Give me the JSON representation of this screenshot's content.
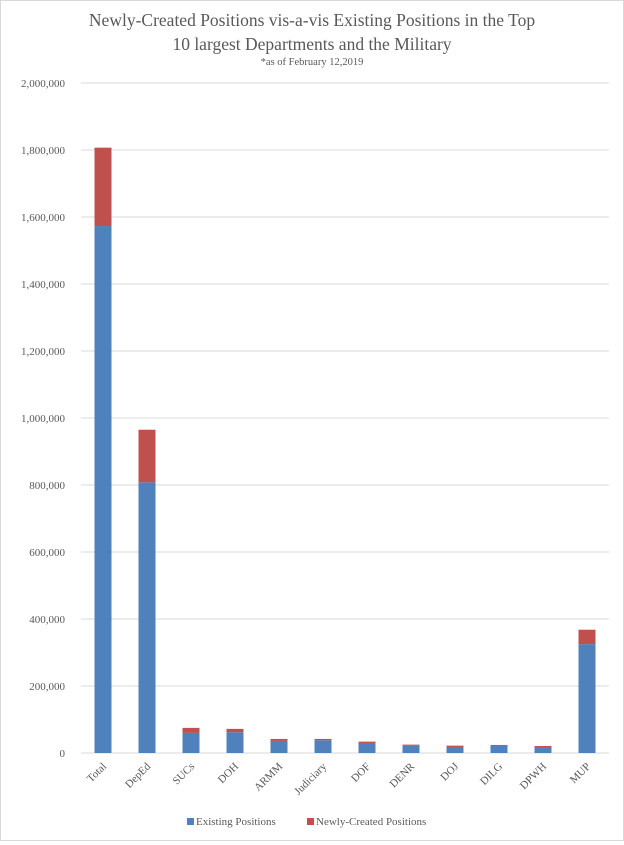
{
  "chart_data": {
    "type": "bar",
    "stacked": true,
    "title_lines": [
      "Newly-Created Positions vis-a-vis Existing Positions in the Top",
      "10 largest Departments and the Military"
    ],
    "subtitle": "*as of February 12,2019",
    "categories": [
      "Total",
      "DepEd",
      "SUCs",
      "DOH",
      "ARMM",
      "Judiciary",
      "DOF",
      "DENR",
      "DOJ",
      "DILG",
      "DPWH",
      "MUP"
    ],
    "series": [
      {
        "name": "Existing Positions",
        "color": "#4f81bd",
        "values": [
          1573000,
          808000,
          60000,
          62000,
          36000,
          38000,
          30000,
          22000,
          18000,
          21000,
          18000,
          325000
        ]
      },
      {
        "name": "Newly-Created Positions",
        "color": "#c0504d",
        "values": [
          234000,
          157000,
          15000,
          10000,
          6000,
          4000,
          4000,
          3000,
          4000,
          3000,
          3000,
          43000
        ]
      }
    ],
    "ylim": [
      0,
      2000000
    ],
    "yticks": [
      0,
      200000,
      400000,
      600000,
      800000,
      1000000,
      1200000,
      1400000,
      1600000,
      1800000,
      2000000
    ],
    "ytick_labels": [
      "0",
      "200,000",
      "400,000",
      "600,000",
      "800,000",
      "1,000,000",
      "1,200,000",
      "1,400,000",
      "1,600,000",
      "1,800,000",
      "2,000,000"
    ],
    "grid": true,
    "legend_position": "bottom"
  }
}
